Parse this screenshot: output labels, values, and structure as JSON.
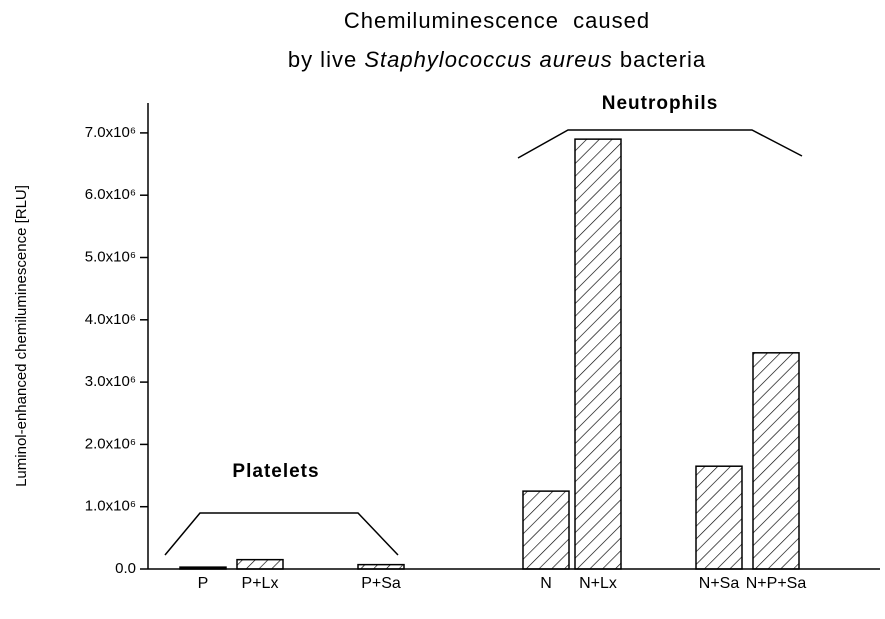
{
  "chart_data": {
    "type": "bar",
    "title": {
      "line1": "Chemiluminescence  caused",
      "line2": [
        "by live ",
        "Staphylococcus aureus",
        " bacteria"
      ]
    },
    "y_label": "Luminol-enhanced chemiluminescence [RLU]",
    "categories": [
      "P",
      "P+Lx",
      "P+Sa",
      "N",
      "N+Lx",
      "N+Sa",
      "N+P+Sa"
    ],
    "values": [
      30000,
      150000,
      70000,
      1250000,
      6900000,
      1650000,
      3470000
    ],
    "colors": [
      "#000000",
      "hatch",
      "hatch",
      "hatch",
      "hatch",
      "hatch",
      "hatch"
    ],
    "annotations": [
      "Platelets",
      "Neutrophils"
    ],
    "ylim": [
      0,
      7480000
    ],
    "yticks": [
      {
        "value": 0,
        "label": "0.0"
      },
      {
        "value": 1000000,
        "label": "1.0x10⁶"
      },
      {
        "value": 2000000,
        "label": "2.0x10⁶"
      },
      {
        "value": 3000000,
        "label": "3.0x10⁶"
      },
      {
        "value": 4000000,
        "label": "4.0x10⁶"
      },
      {
        "value": 5000000,
        "label": "5.0x10⁶"
      },
      {
        "value": 6000000,
        "label": "6.0x10⁶"
      },
      {
        "value": 7000000,
        "label": "7.0x10⁶"
      }
    ],
    "grid": false
  }
}
